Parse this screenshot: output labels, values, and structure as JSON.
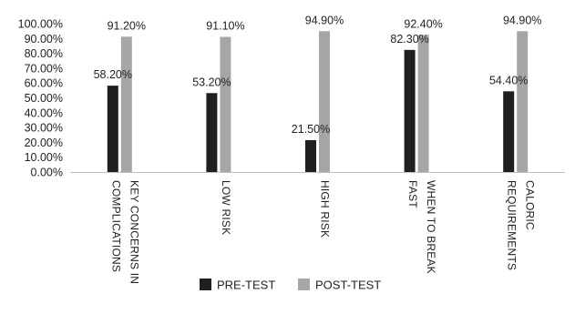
{
  "chart_data": {
    "type": "bar",
    "categories": [
      [
        "KEY CONCERNS IN",
        "COMPLICATIONS"
      ],
      [
        "LOW RISK"
      ],
      [
        "HIGH RISK"
      ],
      [
        "WHEN TO BREAK",
        "FAST"
      ],
      [
        "CALORIC",
        "REQUIREMENTS"
      ]
    ],
    "series": [
      {
        "name": "PRE-TEST",
        "values": [
          58.2,
          53.2,
          21.5,
          82.3,
          54.4
        ],
        "color": "#1f1f1f"
      },
      {
        "name": "POST-TEST",
        "values": [
          91.2,
          91.1,
          94.9,
          92.4,
          94.9
        ],
        "color": "#a6a6a6"
      }
    ],
    "data_labels": [
      [
        "58.20%",
        "53.20%",
        "21.50%",
        "82.30%",
        "54.40%"
      ],
      [
        "91.20%",
        "91.10%",
        "94.90%",
        "92.40%",
        "94.90%"
      ]
    ],
    "y_ticks": [
      "0.00%",
      "10.00%",
      "20.00%",
      "30.00%",
      "40.00%",
      "50.00%",
      "60.00%",
      "70.00%",
      "80.00%",
      "90.00%",
      "100.00%"
    ],
    "ylim": [
      0,
      100
    ],
    "grid": false,
    "legend_position": "bottom"
  }
}
